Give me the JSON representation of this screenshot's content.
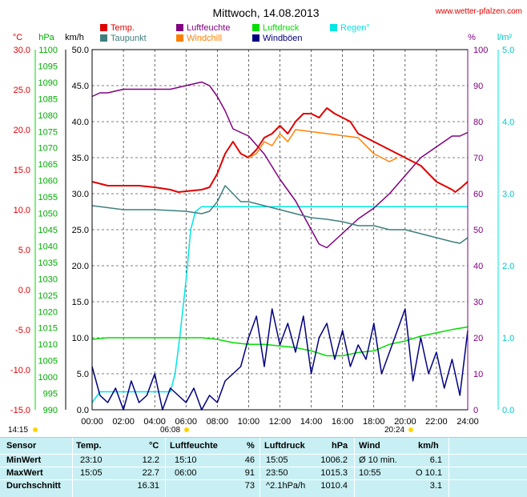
{
  "header": {
    "title": "Mittwoch, 14.08.2013",
    "website": "www.wetter-pfalzen.com",
    "sun_rise": "06:08",
    "sun_set": "20:24",
    "moon_rise": "14:15"
  },
  "colors": {
    "temp": "#e00000",
    "dew": "#3f7f7f",
    "hum": "#800080",
    "chill": "#ff8000",
    "press": "#00dd00",
    "gust": "#000080",
    "rain": "#00e5e5",
    "wind_axis": "#000000",
    "table_bg": "#c8f0f4"
  },
  "chart_data": {
    "type": "line",
    "x_ticks": [
      "00:00",
      "02:00",
      "04:00",
      "06:00",
      "08:00",
      "10:00",
      "12:00",
      "14:00",
      "16:00",
      "18:00",
      "20:00",
      "22:00",
      "24:00"
    ],
    "axes": {
      "temp": {
        "label": "°C",
        "ticks": [
          "30.0",
          "25.0",
          "20.0",
          "15.0",
          "10.0",
          "5.0",
          "0.0",
          "-5.0",
          "-10.0",
          "-15.0"
        ],
        "range": [
          -15,
          30
        ]
      },
      "pressure": {
        "label": "hPa",
        "ticks": [
          "1100",
          "1095",
          "1090",
          "1085",
          "1080",
          "1075",
          "1070",
          "1065",
          "1060",
          "1055",
          "1050",
          "1045",
          "1040",
          "1035",
          "1030",
          "1025",
          "1020",
          "1015",
          "1010",
          "1005",
          "1000",
          "995",
          "990"
        ],
        "range": [
          990,
          1100
        ]
      },
      "wind": {
        "label": "km/h",
        "ticks": [
          "50.0",
          "45.0",
          "40.0",
          "35.0",
          "30.0",
          "25.0",
          "20.0",
          "15.0",
          "10.0",
          "5.0",
          "0.0"
        ],
        "range": [
          0,
          50
        ]
      },
      "humidity": {
        "label": "%",
        "ticks": [
          "100",
          "90",
          "80",
          "70",
          "60",
          "50",
          "40",
          "30",
          "20",
          "10",
          "0"
        ],
        "range": [
          0,
          100
        ]
      },
      "rain": {
        "label": "l/m²",
        "ticks": [
          "5.0",
          "4.0",
          "3.0",
          "2.0",
          "1.0",
          "0.0"
        ],
        "range": [
          0,
          5
        ]
      }
    },
    "legend": [
      {
        "name": "Temp.",
        "color": "#e00000"
      },
      {
        "name": "Luftfeuchte",
        "color": "#800080"
      },
      {
        "name": "Luftdruck",
        "color": "#00dd00"
      },
      {
        "name": "Regen°",
        "color": "#00e5e5"
      },
      {
        "name": "Taupunkt",
        "color": "#3f7f7f"
      },
      {
        "name": "Windchill",
        "color": "#ff8000"
      },
      {
        "name": "Windböen",
        "color": "#000080"
      }
    ],
    "series": [
      {
        "name": "Temp.",
        "axis": "temp",
        "x": [
          0,
          1,
          2,
          3,
          4,
          5,
          5.5,
          6,
          7,
          7.5,
          8,
          8.5,
          9,
          9.5,
          10,
          10.5,
          11,
          11.5,
          12,
          12.5,
          13,
          13.5,
          14,
          14.5,
          15,
          15.5,
          16,
          16.5,
          17,
          17.5,
          18,
          18.5,
          19,
          19.5,
          20,
          20.5,
          21,
          21.5,
          22,
          22.5,
          23,
          23.2,
          23.6,
          24
        ],
        "values": [
          13.5,
          13.0,
          13.0,
          13.0,
          12.8,
          12.5,
          12.2,
          12.3,
          12.5,
          12.8,
          14.5,
          17.0,
          18.5,
          17.0,
          16.5,
          17.5,
          19.0,
          19.5,
          20.5,
          19.5,
          21.0,
          22.0,
          22.0,
          21.5,
          22.7,
          22.0,
          21.5,
          21.0,
          19.5,
          19.0,
          18.5,
          18.0,
          17.5,
          17.0,
          16.5,
          16.0,
          15.5,
          14.5,
          13.5,
          13.0,
          12.5,
          12.2,
          12.8,
          13.5
        ]
      },
      {
        "name": "Windchill",
        "axis": "temp",
        "x": [
          10,
          10.5,
          11,
          11.5,
          12,
          12.5,
          13,
          17,
          17.5,
          18,
          18.5,
          19,
          19.5
        ],
        "values": [
          16.5,
          17.0,
          18.5,
          18.0,
          19.5,
          18.5,
          20.0,
          19.0,
          18.0,
          17.0,
          16.5,
          16.0,
          16.5
        ]
      },
      {
        "name": "Taupunkt",
        "axis": "temp",
        "x": [
          0,
          2,
          4,
          6,
          7,
          7.5,
          8,
          8.5,
          9,
          9.5,
          10,
          11,
          12,
          13,
          14,
          15,
          16,
          17,
          18,
          19,
          20,
          21,
          22,
          23,
          23.5,
          24
        ],
        "values": [
          10.5,
          10.0,
          10.0,
          9.8,
          9.5,
          9.8,
          11.0,
          13.0,
          12.0,
          11.0,
          11.0,
          10.5,
          10.0,
          9.5,
          9.0,
          8.8,
          8.5,
          8.0,
          8.0,
          7.5,
          7.5,
          7.0,
          6.5,
          6.0,
          5.8,
          6.5
        ]
      },
      {
        "name": "Luftfeuchte",
        "axis": "humidity",
        "x": [
          0,
          0.5,
          1,
          2,
          3,
          4,
          5,
          6,
          7,
          7.5,
          8,
          8.5,
          9,
          9.5,
          10,
          11,
          12,
          13,
          14,
          14.5,
          15,
          15.5,
          16,
          17,
          18,
          19,
          20,
          21,
          22,
          23,
          23.5,
          24
        ],
        "values": [
          87,
          88,
          88,
          89,
          89,
          89,
          89,
          90,
          91,
          90,
          87,
          83,
          78,
          77,
          76,
          71,
          64,
          58,
          50,
          46,
          45,
          47,
          49,
          53,
          56,
          60,
          65,
          70,
          73,
          76,
          76,
          77
        ]
      },
      {
        "name": "Luftdruck",
        "axis": "pressure",
        "x": [
          0,
          1,
          2,
          3,
          4,
          5,
          6,
          7,
          8,
          9,
          10,
          11,
          12,
          13,
          14,
          15,
          16,
          17,
          18,
          19,
          20,
          21,
          22,
          23,
          24
        ],
        "values": [
          1011.5,
          1012.0,
          1012.0,
          1012.0,
          1012.0,
          1012.0,
          1012.0,
          1012.0,
          1011.5,
          1010.5,
          1010.0,
          1010.0,
          1009.5,
          1009.0,
          1008.0,
          1006.5,
          1006.5,
          1007.5,
          1008.0,
          1010.0,
          1011.0,
          1012.5,
          1013.5,
          1014.5,
          1015.3
        ]
      },
      {
        "name": "Regen°",
        "axis": "rain",
        "x": [
          0,
          0.5,
          1,
          2,
          3,
          4,
          5,
          5.3,
          5.6,
          6,
          6.3,
          6.6,
          7,
          8,
          10,
          14,
          18,
          24
        ],
        "values": [
          0.1,
          0.25,
          0.25,
          0.25,
          0.25,
          0.25,
          0.25,
          0.5,
          1.0,
          1.8,
          2.5,
          2.75,
          2.82,
          2.82,
          2.82,
          2.82,
          2.82,
          2.82
        ]
      },
      {
        "name": "Windböen",
        "axis": "wind",
        "x": [
          0,
          0.5,
          1,
          1.5,
          2,
          2.5,
          3,
          3.5,
          4,
          4.5,
          5,
          5.5,
          6,
          6.5,
          7,
          7.5,
          8,
          8.5,
          9,
          9.5,
          10,
          10.5,
          11,
          11.5,
          12,
          12.5,
          13,
          13.5,
          14,
          14.5,
          15,
          15.5,
          16,
          16.5,
          17,
          17.5,
          18,
          18.5,
          19,
          19.5,
          20,
          20.5,
          21,
          21.5,
          22,
          22.5,
          23,
          23.5,
          24
        ],
        "values": [
          6,
          2,
          1,
          3,
          0,
          4,
          1,
          2,
          5,
          0,
          3,
          2,
          1,
          3,
          0,
          2,
          1,
          4,
          5,
          6,
          10,
          13,
          6,
          14,
          9,
          12,
          8,
          13,
          5,
          10,
          12,
          7,
          11,
          6,
          9,
          7,
          12,
          5,
          8,
          11,
          14,
          4,
          10,
          5,
          8,
          3,
          7,
          2,
          11
        ]
      }
    ]
  },
  "table": {
    "headers": {
      "sensor": "Sensor",
      "temp": "Temp.",
      "temp_unit": "°C",
      "hum": "Luftfeuchte",
      "hum_unit": "%",
      "press": "Luftdruck",
      "press_unit": "hPa",
      "wind": "Wind",
      "wind_unit": "km/h"
    },
    "rows": [
      {
        "label": "MinWert",
        "temp_time": "23:10",
        "temp_val": "12.2",
        "hum_time": "15:10",
        "hum_val": "46",
        "press_time": "15:05",
        "press_val": "1006.2",
        "wind_time": "Ø 10 min.",
        "wind_val": "6.1"
      },
      {
        "label": "MaxWert",
        "temp_time": "15:05",
        "temp_val": "22.7",
        "hum_time": "06:00",
        "hum_val": "91",
        "press_time": "23:50",
        "press_val": "1015.3",
        "wind_time": "10:55",
        "wind_val": "O 10.1"
      },
      {
        "label": "Durchschnitt",
        "temp_time": "",
        "temp_val": "16.31",
        "hum_time": "",
        "hum_val": "73",
        "press_time": "^2.1hPa/h",
        "press_val": "1010.4",
        "wind_time": "",
        "wind_val": "3.1"
      }
    ]
  }
}
